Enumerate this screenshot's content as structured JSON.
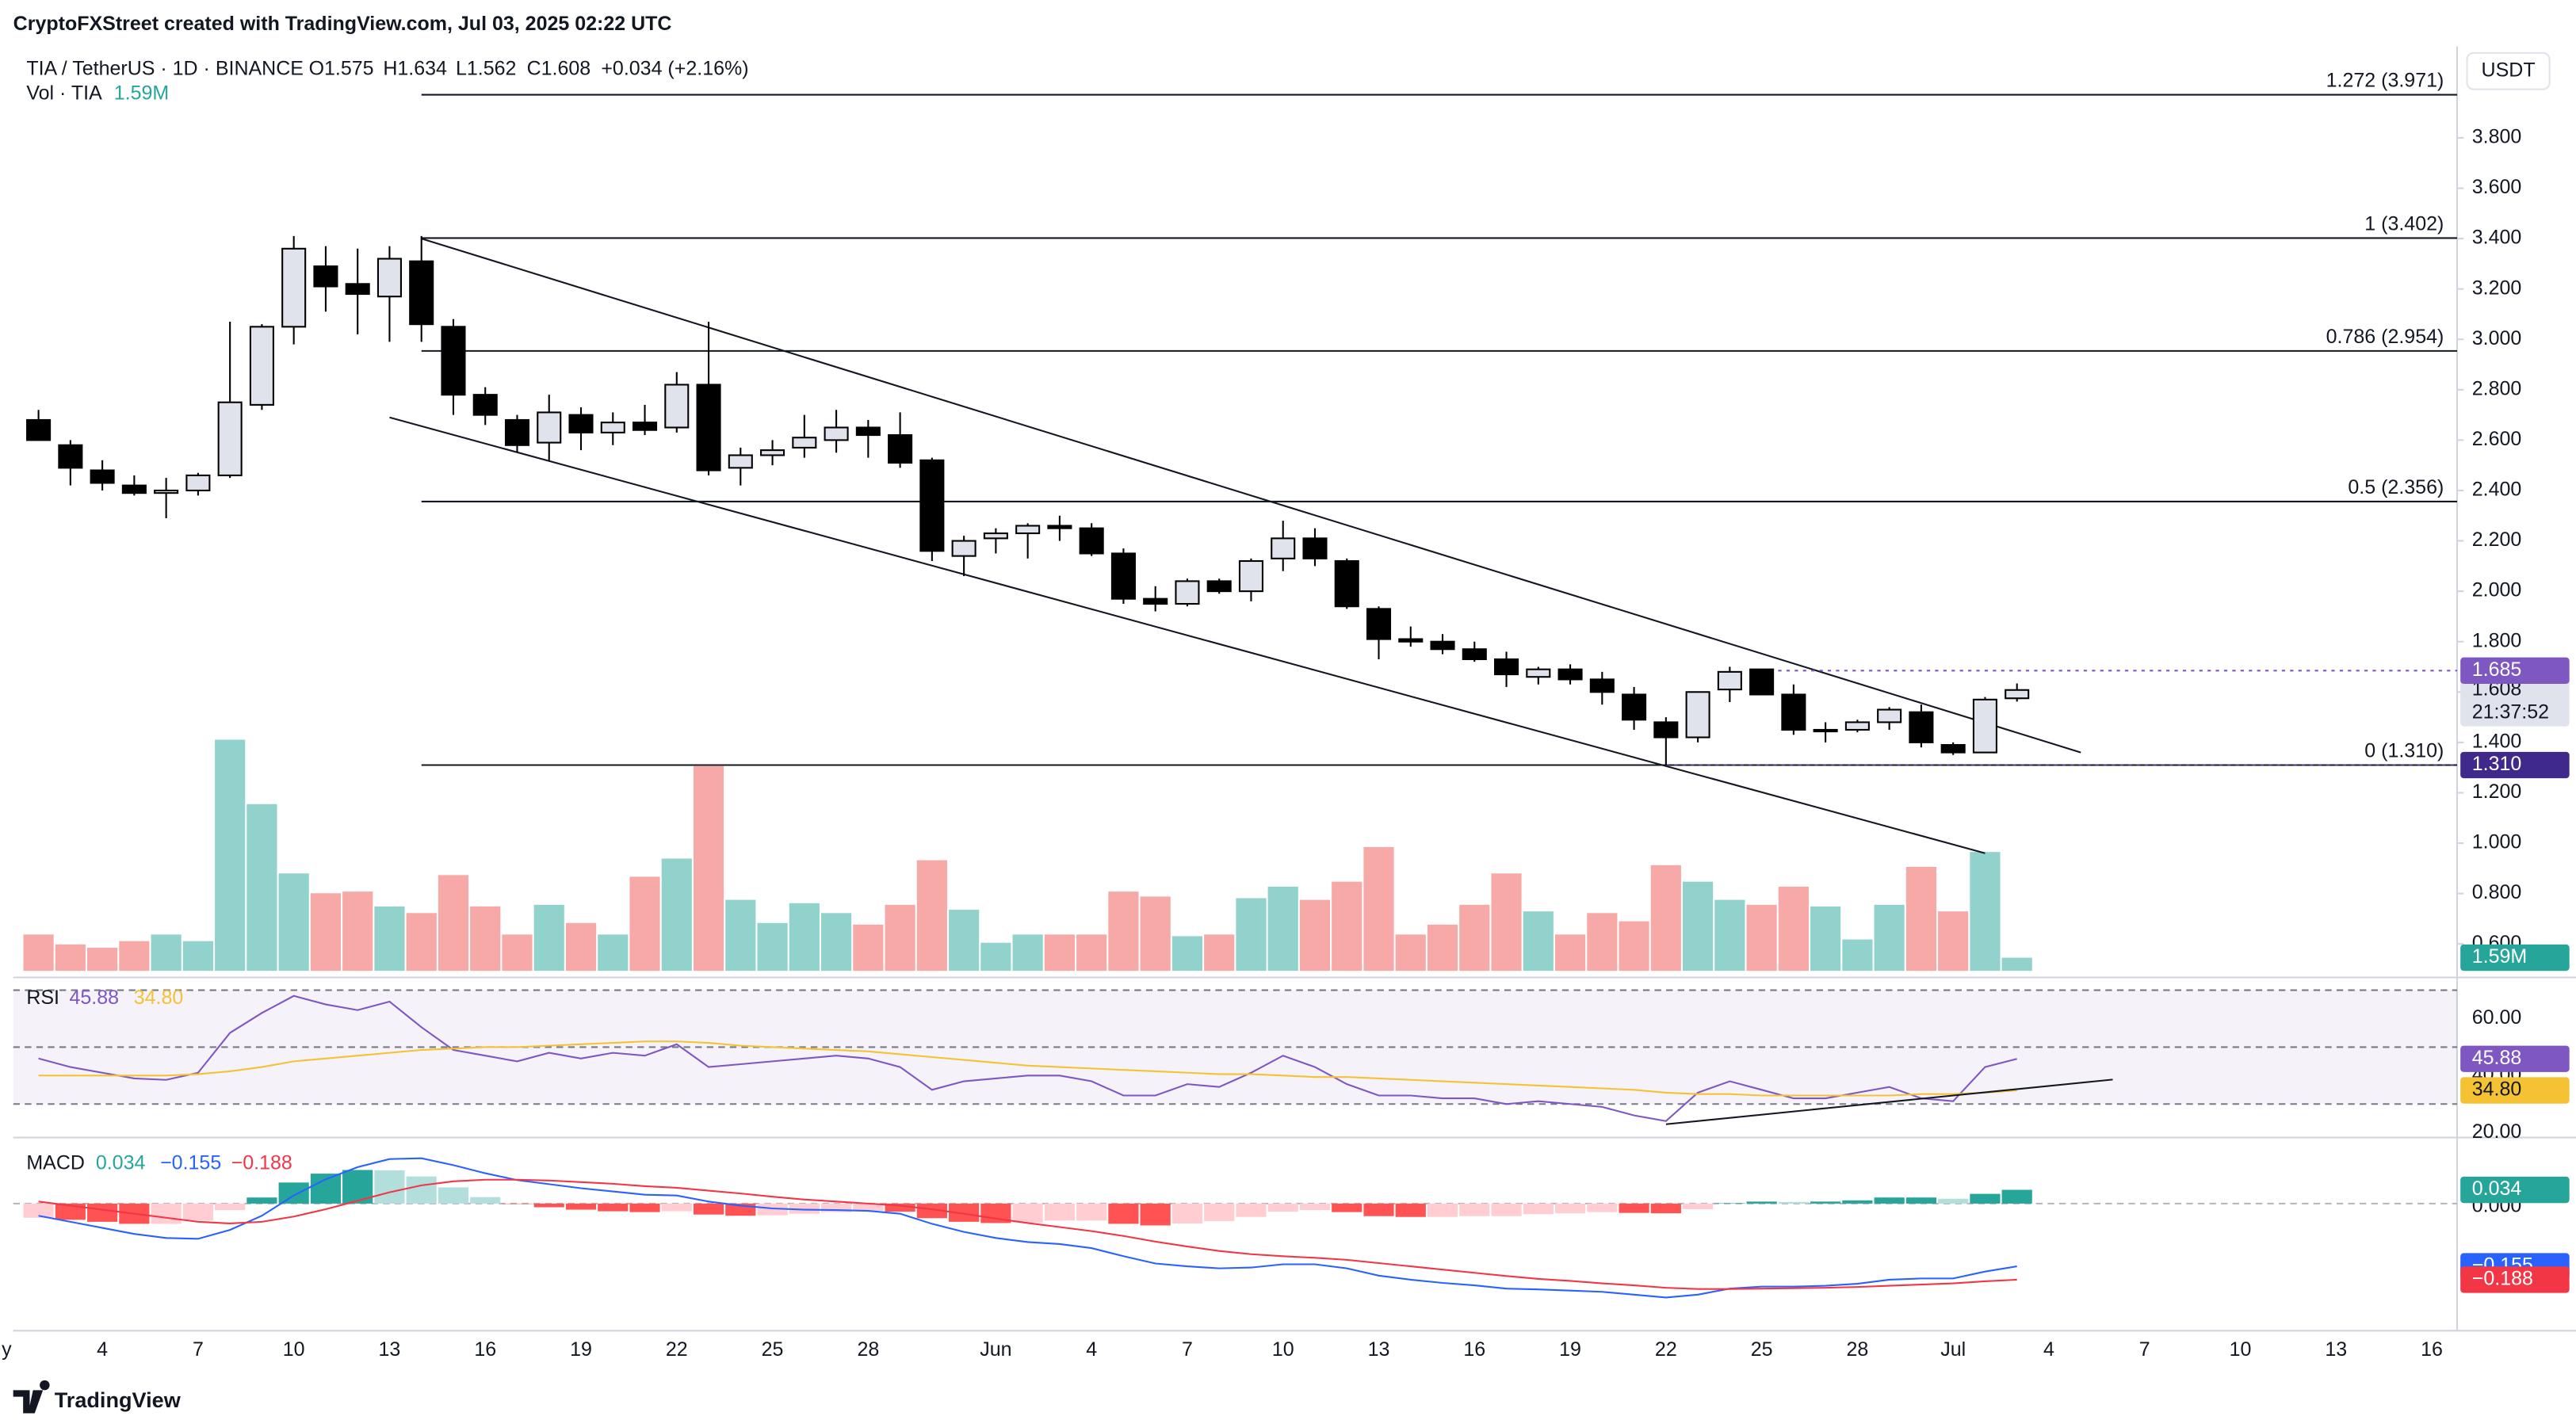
{
  "header": "CryptoFXStreet created with TradingView.com, Jul 03, 2025 02:22 UTC",
  "footer": "TradingView",
  "chart_data": {
    "type": "candlestick",
    "symbol": "TIA / TetherUS · 1D · BINANCE",
    "ohlc_text": [
      "O1.575",
      "H1.634",
      "L1.562",
      "C1.608",
      "+0.034 (+2.16%)"
    ],
    "currency": "USDT",
    "x": [
      "2025-05-02",
      "2025-05-03",
      "2025-05-04",
      "2025-05-05",
      "2025-05-06",
      "2025-05-07",
      "2025-05-08",
      "2025-05-09",
      "2025-05-10",
      "2025-05-11",
      "2025-05-12",
      "2025-05-13",
      "2025-05-14",
      "2025-05-15",
      "2025-05-16",
      "2025-05-17",
      "2025-05-18",
      "2025-05-19",
      "2025-05-20",
      "2025-05-21",
      "2025-05-22",
      "2025-05-23",
      "2025-05-24",
      "2025-05-25",
      "2025-05-26",
      "2025-05-27",
      "2025-05-28",
      "2025-05-29",
      "2025-05-30",
      "2025-05-31",
      "2025-06-01",
      "2025-06-02",
      "2025-06-03",
      "2025-06-04",
      "2025-06-05",
      "2025-06-06",
      "2025-06-07",
      "2025-06-08",
      "2025-06-09",
      "2025-06-10",
      "2025-06-11",
      "2025-06-12",
      "2025-06-13",
      "2025-06-14",
      "2025-06-15",
      "2025-06-16",
      "2025-06-17",
      "2025-06-18",
      "2025-06-19",
      "2025-06-20",
      "2025-06-21",
      "2025-06-22",
      "2025-06-23",
      "2025-06-24",
      "2025-06-25",
      "2025-06-26",
      "2025-06-27",
      "2025-06-28",
      "2025-06-29",
      "2025-06-30",
      "2025-07-01",
      "2025-07-02",
      "2025-07-03"
    ],
    "xlim": [
      "2025-05-01",
      "2025-07-17"
    ],
    "xticks": [
      {
        "value": "2025-05-01",
        "label": "y"
      },
      {
        "value": "2025-05-04",
        "label": "4"
      },
      {
        "value": "2025-05-07",
        "label": "7"
      },
      {
        "value": "2025-05-10",
        "label": "10"
      },
      {
        "value": "2025-05-13",
        "label": "13"
      },
      {
        "value": "2025-05-16",
        "label": "16"
      },
      {
        "value": "2025-05-19",
        "label": "19"
      },
      {
        "value": "2025-05-22",
        "label": "22"
      },
      {
        "value": "2025-05-25",
        "label": "25"
      },
      {
        "value": "2025-05-28",
        "label": "28"
      },
      {
        "value": "2025-06-01",
        "label": "Jun"
      },
      {
        "value": "2025-06-04",
        "label": "4"
      },
      {
        "value": "2025-06-07",
        "label": "7"
      },
      {
        "value": "2025-06-10",
        "label": "10"
      },
      {
        "value": "2025-06-13",
        "label": "13"
      },
      {
        "value": "2025-06-16",
        "label": "16"
      },
      {
        "value": "2025-06-19",
        "label": "19"
      },
      {
        "value": "2025-06-22",
        "label": "22"
      },
      {
        "value": "2025-06-25",
        "label": "25"
      },
      {
        "value": "2025-06-28",
        "label": "28"
      },
      {
        "value": "2025-07-01",
        "label": "Jul"
      },
      {
        "value": "2025-07-04",
        "label": "4"
      },
      {
        "value": "2025-07-07",
        "label": "7"
      },
      {
        "value": "2025-07-10",
        "label": "10"
      },
      {
        "value": "2025-07-13",
        "label": "13"
      },
      {
        "value": "2025-07-16",
        "label": "16"
      }
    ],
    "ohlc": [
      [
        2.68,
        2.72,
        2.6,
        2.6
      ],
      [
        2.58,
        2.6,
        2.42,
        2.49
      ],
      [
        2.48,
        2.52,
        2.4,
        2.43
      ],
      [
        2.42,
        2.46,
        2.38,
        2.39
      ],
      [
        2.39,
        2.45,
        2.29,
        2.4
      ],
      [
        2.4,
        2.47,
        2.38,
        2.46
      ],
      [
        2.46,
        3.07,
        2.45,
        2.75
      ],
      [
        2.74,
        3.06,
        2.72,
        3.05
      ],
      [
        3.05,
        3.41,
        2.98,
        3.36
      ],
      [
        3.29,
        3.37,
        3.11,
        3.21
      ],
      [
        3.22,
        3.36,
        3.02,
        3.18
      ],
      [
        3.17,
        3.37,
        2.99,
        3.32
      ],
      [
        3.31,
        3.41,
        2.99,
        3.06
      ],
      [
        3.05,
        3.08,
        2.7,
        2.78
      ],
      [
        2.78,
        2.81,
        2.66,
        2.7
      ],
      [
        2.68,
        2.7,
        2.55,
        2.58
      ],
      [
        2.59,
        2.78,
        2.52,
        2.71
      ],
      [
        2.7,
        2.73,
        2.56,
        2.63
      ],
      [
        2.63,
        2.71,
        2.58,
        2.67
      ],
      [
        2.67,
        2.74,
        2.62,
        2.64
      ],
      [
        2.65,
        2.87,
        2.63,
        2.82
      ],
      [
        2.82,
        3.07,
        2.46,
        2.48
      ],
      [
        2.49,
        2.57,
        2.42,
        2.54
      ],
      [
        2.54,
        2.6,
        2.5,
        2.56
      ],
      [
        2.57,
        2.7,
        2.53,
        2.61
      ],
      [
        2.6,
        2.72,
        2.55,
        2.65
      ],
      [
        2.65,
        2.68,
        2.53,
        2.62
      ],
      [
        2.62,
        2.71,
        2.49,
        2.51
      ],
      [
        2.52,
        2.53,
        2.12,
        2.16
      ],
      [
        2.14,
        2.22,
        2.06,
        2.2
      ],
      [
        2.21,
        2.25,
        2.15,
        2.23
      ],
      [
        2.23,
        2.27,
        2.13,
        2.26
      ],
      [
        2.26,
        2.3,
        2.2,
        2.25
      ],
      [
        2.25,
        2.27,
        2.14,
        2.15
      ],
      [
        2.15,
        2.17,
        1.95,
        1.97
      ],
      [
        1.97,
        2.02,
        1.92,
        1.95
      ],
      [
        1.95,
        2.05,
        1.94,
        2.04
      ],
      [
        2.04,
        2.05,
        1.99,
        2.0
      ],
      [
        2.0,
        2.13,
        1.96,
        2.12
      ],
      [
        2.13,
        2.28,
        2.08,
        2.21
      ],
      [
        2.21,
        2.25,
        2.1,
        2.13
      ],
      [
        2.12,
        2.13,
        1.93,
        1.94
      ],
      [
        1.93,
        1.94,
        1.73,
        1.81
      ],
      [
        1.81,
        1.86,
        1.78,
        1.8
      ],
      [
        1.8,
        1.83,
        1.75,
        1.77
      ],
      [
        1.77,
        1.8,
        1.72,
        1.73
      ],
      [
        1.73,
        1.76,
        1.62,
        1.67
      ],
      [
        1.66,
        1.7,
        1.63,
        1.69
      ],
      [
        1.69,
        1.71,
        1.63,
        1.65
      ],
      [
        1.65,
        1.68,
        1.55,
        1.6
      ],
      [
        1.59,
        1.62,
        1.45,
        1.49
      ],
      [
        1.48,
        1.5,
        1.31,
        1.42
      ],
      [
        1.42,
        1.6,
        1.4,
        1.6
      ],
      [
        1.61,
        1.7,
        1.56,
        1.68
      ],
      [
        1.69,
        1.69,
        1.59,
        1.59
      ],
      [
        1.59,
        1.63,
        1.43,
        1.45
      ],
      [
        1.45,
        1.48,
        1.4,
        1.45
      ],
      [
        1.45,
        1.49,
        1.44,
        1.48
      ],
      [
        1.48,
        1.54,
        1.45,
        1.53
      ],
      [
        1.52,
        1.55,
        1.38,
        1.4
      ],
      [
        1.39,
        1.4,
        1.35,
        1.36
      ],
      [
        1.36,
        1.58,
        1.36,
        1.57
      ],
      [
        1.575,
        1.634,
        1.562,
        1.608
      ]
    ],
    "up_color": "#e0e3eb",
    "down_color": "#000000",
    "ylim": [
      0.48,
      4.15
    ],
    "yticks": [
      {
        "value": 0.6,
        "label": "0.600"
      },
      {
        "value": 0.8,
        "label": "0.800"
      },
      {
        "value": 1.0,
        "label": "1.000"
      },
      {
        "value": 1.2,
        "label": "1.200"
      },
      {
        "value": 1.4,
        "label": "1.400"
      },
      {
        "value": 1.6,
        "label": "1.600"
      },
      {
        "value": 1.8,
        "label": "1.800"
      },
      {
        "value": 2.0,
        "label": "2.000"
      },
      {
        "value": 2.2,
        "label": "2.200"
      },
      {
        "value": 2.4,
        "label": "2.400"
      },
      {
        "value": 2.6,
        "label": "2.600"
      },
      {
        "value": 2.8,
        "label": "2.800"
      },
      {
        "value": 3.0,
        "label": "3.000"
      },
      {
        "value": 3.2,
        "label": "3.200"
      },
      {
        "value": 3.4,
        "label": "3.400"
      },
      {
        "value": 3.6,
        "label": "3.600"
      },
      {
        "value": 3.8,
        "label": "3.800"
      }
    ],
    "last_price_label": "1.608",
    "countdown": "21:37:52",
    "volume": {
      "name": "Vol · TIA",
      "last_label": "1.59M",
      "up_color": "#92d2cc",
      "down_color": "#f7a9a7",
      "badge_color": "#26a69a",
      "values": [
        4.4,
        3.2,
        2.8,
        3.6,
        4.4,
        3.6,
        28,
        20.2,
        11.8,
        9.4,
        9.6,
        7.8,
        7,
        11.6,
        7.8,
        4.4,
        8,
        5.8,
        4.4,
        11.4,
        13.6,
        24.8,
        8.6,
        5.8,
        8.2,
        7,
        5.6,
        8,
        13.4,
        7.4,
        3.4,
        4.4,
        4.4,
        4.4,
        9.6,
        9,
        4.2,
        4.4,
        8.8,
        10.2,
        8.6,
        10.8,
        15,
        4.4,
        5.6,
        8,
        11.8,
        7.2,
        4.4,
        7,
        6,
        12.8,
        10.8,
        8.6,
        8,
        10.2,
        7.8,
        3.8,
        8,
        12.6,
        7.2,
        14.4,
        1.59
      ]
    },
    "fib_start": "2025-05-14",
    "fib_levels": [
      {
        "label": "1.272 (3.971)",
        "price": 3.971
      },
      {
        "label": "1 (3.402)",
        "price": 3.402
      },
      {
        "label": "0.786 (2.954)",
        "price": 2.954
      },
      {
        "label": "0.5 (2.356)",
        "price": 2.356
      },
      {
        "label": "0 (1.310)",
        "price": 1.31
      }
    ],
    "price_lines": [
      {
        "price": 1.685,
        "label": "1.685",
        "color": "#7e57c2",
        "start": "2025-06-25"
      },
      {
        "price": 1.31,
        "label": "1.310",
        "color": "#3f2a8c",
        "start": "2025-06-22"
      }
    ],
    "trend_lines": [
      {
        "x": [
          "2025-05-14",
          "2025-07-05"
        ],
        "y": [
          3.4,
          1.36
        ]
      },
      {
        "x": [
          "2025-05-13",
          "2025-07-02"
        ],
        "y": [
          2.69,
          0.96
        ]
      }
    ],
    "rsi": {
      "title": "RSI",
      "ylim": [
        18.8,
        71
      ],
      "yticks": [
        {
          "value": 60,
          "label": "60.00"
        },
        {
          "value": 40,
          "label": "40.00"
        },
        {
          "value": 20,
          "label": "20.00"
        }
      ],
      "bands": [
        70,
        50,
        30
      ],
      "band_color": "#7e57c2",
      "series": [
        {
          "color": "#7e57c2",
          "last_label": "45.88",
          "values": [
            46,
            43,
            41,
            39,
            38.5,
            41,
            55,
            62,
            68,
            65,
            63,
            66,
            57,
            49,
            47,
            45,
            48,
            46,
            48,
            47,
            51,
            43,
            44,
            45,
            46,
            47,
            46,
            43,
            35,
            38,
            39,
            40,
            40,
            38,
            33,
            33,
            37,
            36,
            41,
            47,
            43,
            37,
            33,
            33,
            32,
            32,
            30,
            31,
            30,
            29,
            26,
            24,
            34,
            38,
            35,
            32,
            32,
            34,
            36,
            32,
            31,
            43,
            45.88
          ]
        },
        {
          "color": "#f5c233",
          "last_label": "34.80",
          "values": [
            40,
            40,
            40,
            40,
            40,
            40.5,
            41.5,
            43,
            45,
            46,
            47,
            48,
            49,
            49.5,
            50,
            50,
            50.5,
            51,
            51.5,
            52,
            52,
            51.5,
            50.5,
            50,
            49.5,
            49,
            48.5,
            47.5,
            46.5,
            45.5,
            44.5,
            43.5,
            43,
            42.5,
            42,
            41.5,
            41,
            40.5,
            40.5,
            40,
            39.5,
            39.5,
            39,
            38.5,
            38,
            37.5,
            37,
            36.5,
            36,
            35.5,
            35,
            34,
            33.5,
            33.5,
            33,
            33,
            33,
            33,
            33,
            33.5,
            33.5,
            34,
            34.8
          ]
        }
      ],
      "trend_line": {
        "x": [
          "2025-06-22",
          "2025-07-06"
        ],
        "y": [
          22.9,
          38.6
        ]
      }
    },
    "macd": {
      "title": "MACD",
      "ylim": [
        -0.31,
        0.159
      ],
      "yticks": [
        {
          "value": 0,
          "label": "0.000"
        }
      ],
      "histogram": {
        "last_label": "0.034",
        "up_color": "#26a69a",
        "up_light": "#b2dfdb",
        "down_color": "#ff5252",
        "down_light": "#ffcdd2",
        "values": [
          -0.035,
          -0.04,
          -0.045,
          -0.05,
          -0.05,
          -0.042,
          -0.016,
          0.015,
          0.052,
          0.074,
          0.083,
          0.082,
          0.067,
          0.04,
          0.016,
          -0.001,
          -0.009,
          -0.015,
          -0.019,
          -0.021,
          -0.019,
          -0.027,
          -0.03,
          -0.029,
          -0.025,
          -0.021,
          -0.018,
          -0.02,
          -0.036,
          -0.045,
          -0.048,
          -0.047,
          -0.042,
          -0.042,
          -0.05,
          -0.054,
          -0.049,
          -0.043,
          -0.033,
          -0.02,
          -0.016,
          -0.021,
          -0.031,
          -0.033,
          -0.033,
          -0.031,
          -0.031,
          -0.026,
          -0.024,
          -0.021,
          -0.023,
          -0.024,
          -0.014,
          0.001,
          0.005,
          0.004,
          0.005,
          0.008,
          0.015,
          0.015,
          0.012,
          0.024,
          0.034
        ]
      },
      "series": [
        {
          "color": "#2962ff",
          "last_label": "−0.155",
          "values": [
            -0.03,
            -0.045,
            -0.06,
            -0.075,
            -0.085,
            -0.087,
            -0.065,
            -0.03,
            0.02,
            0.06,
            0.09,
            0.11,
            0.112,
            0.095,
            0.075,
            0.058,
            0.048,
            0.038,
            0.03,
            0.022,
            0.02,
            0.005,
            -0.005,
            -0.012,
            -0.015,
            -0.016,
            -0.018,
            -0.025,
            -0.05,
            -0.07,
            -0.085,
            -0.095,
            -0.1,
            -0.11,
            -0.13,
            -0.148,
            -0.155,
            -0.16,
            -0.158,
            -0.15,
            -0.15,
            -0.16,
            -0.178,
            -0.188,
            -0.196,
            -0.202,
            -0.21,
            -0.212,
            -0.215,
            -0.218,
            -0.225,
            -0.232,
            -0.225,
            -0.21,
            -0.205,
            -0.205,
            -0.203,
            -0.198,
            -0.188,
            -0.185,
            -0.185,
            -0.168,
            -0.155
          ]
        },
        {
          "color": "#f23645",
          "last_label": "−0.188",
          "values": [
            0.005,
            -0.005,
            -0.015,
            -0.025,
            -0.035,
            -0.045,
            -0.049,
            -0.045,
            -0.032,
            -0.014,
            0.007,
            0.028,
            0.045,
            0.055,
            0.059,
            0.059,
            0.057,
            0.053,
            0.049,
            0.043,
            0.039,
            0.032,
            0.025,
            0.017,
            0.01,
            0.005,
            0.0,
            -0.005,
            -0.014,
            -0.025,
            -0.037,
            -0.048,
            -0.058,
            -0.068,
            -0.08,
            -0.094,
            -0.106,
            -0.117,
            -0.125,
            -0.13,
            -0.134,
            -0.139,
            -0.147,
            -0.155,
            -0.163,
            -0.171,
            -0.179,
            -0.186,
            -0.191,
            -0.197,
            -0.202,
            -0.208,
            -0.211,
            -0.211,
            -0.21,
            -0.209,
            -0.208,
            -0.206,
            -0.203,
            -0.2,
            -0.197,
            -0.192,
            -0.188
          ]
        }
      ]
    }
  }
}
